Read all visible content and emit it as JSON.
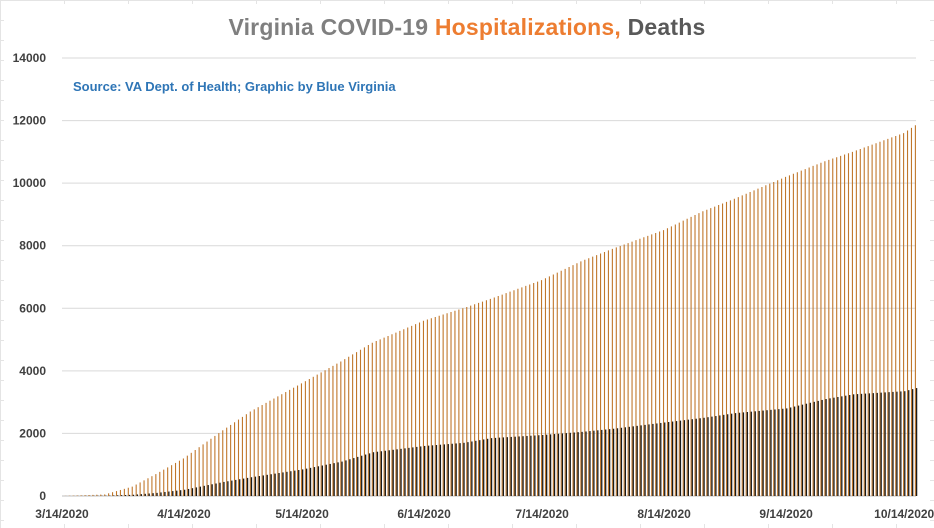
{
  "chart_data": {
    "type": "bar",
    "title_parts": {
      "part1": "Virginia COVID-19 ",
      "part2": "Hospitalizations,",
      "part3": " Deaths"
    },
    "source_note": "Source: VA Dept. of Health; Graphic by Blue Virginia",
    "ylim": [
      0,
      14000
    ],
    "yticks": [
      "0",
      "2000",
      "4000",
      "6000",
      "8000",
      "10000",
      "12000",
      "14000"
    ],
    "xticks": [
      "3/14/2020",
      "4/14/2020",
      "5/14/2020",
      "6/14/2020",
      "7/14/2020",
      "8/14/2020",
      "9/14/2020",
      "10/14/2020"
    ],
    "x_start": "3/14/2020",
    "x_end": "10/17/2020",
    "series": [
      {
        "name": "Hospitalizations",
        "color": "#c0772b",
        "anchors": [
          [
            "3/14/2020",
            0
          ],
          [
            "3/25/2020",
            50
          ],
          [
            "4/1/2020",
            300
          ],
          [
            "4/7/2020",
            700
          ],
          [
            "4/14/2020",
            1200
          ],
          [
            "4/24/2020",
            2100
          ],
          [
            "5/1/2020",
            2700
          ],
          [
            "5/14/2020",
            3600
          ],
          [
            "5/24/2020",
            4300
          ],
          [
            "6/1/2020",
            4900
          ],
          [
            "6/14/2020",
            5600
          ],
          [
            "6/24/2020",
            6000
          ],
          [
            "7/1/2020",
            6300
          ],
          [
            "7/14/2020",
            6900
          ],
          [
            "7/24/2020",
            7500
          ],
          [
            "8/1/2020",
            7900
          ],
          [
            "8/14/2020",
            8500
          ],
          [
            "8/24/2020",
            9100
          ],
          [
            "9/1/2020",
            9500
          ],
          [
            "9/14/2020",
            10200
          ],
          [
            "9/24/2020",
            10700
          ],
          [
            "10/1/2020",
            11000
          ],
          [
            "10/14/2020",
            11600
          ],
          [
            "10/17/2020",
            11850
          ]
        ]
      },
      {
        "name": "Deaths",
        "color": "#1a1a1a",
        "anchors": [
          [
            "3/14/2020",
            0
          ],
          [
            "3/25/2020",
            10
          ],
          [
            "4/1/2020",
            40
          ],
          [
            "4/7/2020",
            100
          ],
          [
            "4/14/2020",
            200
          ],
          [
            "4/24/2020",
            450
          ],
          [
            "5/1/2020",
            600
          ],
          [
            "5/14/2020",
            850
          ],
          [
            "5/24/2020",
            1100
          ],
          [
            "6/1/2020",
            1400
          ],
          [
            "6/14/2020",
            1600
          ],
          [
            "6/24/2020",
            1700
          ],
          [
            "7/1/2020",
            1850
          ],
          [
            "7/14/2020",
            1950
          ],
          [
            "7/24/2020",
            2050
          ],
          [
            "8/1/2020",
            2150
          ],
          [
            "8/14/2020",
            2350
          ],
          [
            "8/24/2020",
            2500
          ],
          [
            "9/1/2020",
            2650
          ],
          [
            "9/14/2020",
            2800
          ],
          [
            "9/24/2020",
            3100
          ],
          [
            "10/1/2020",
            3250
          ],
          [
            "10/14/2020",
            3350
          ],
          [
            "10/17/2020",
            3450
          ]
        ]
      }
    ]
  }
}
